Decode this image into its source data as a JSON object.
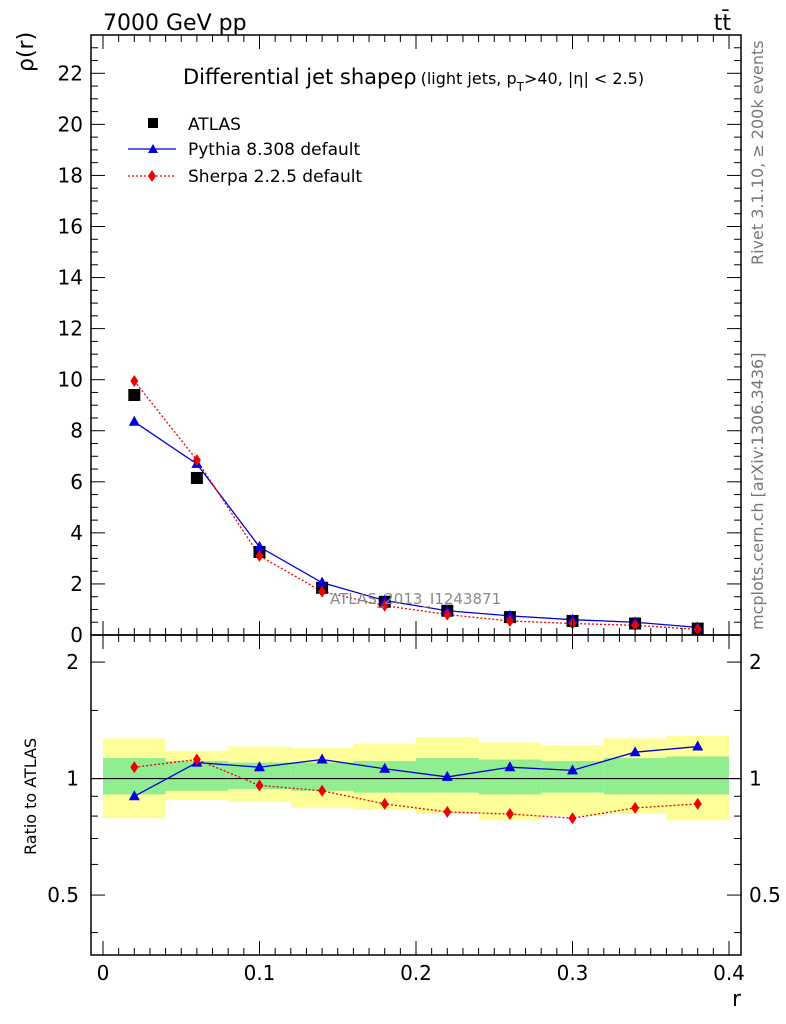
{
  "header": {
    "energy_label": "7000 GeV pp",
    "process_label": "tt̄"
  },
  "side_labels": {
    "rivet": "Rivet 3.1.10, ≥ 200k events",
    "mcplots": "mcplots.cern.ch [arXiv:1306.3436]"
  },
  "watermark": "ATLAS_2013_I1243871",
  "chart_data": [
    {
      "type": "line",
      "title_main": "Differential jet shapeρ",
      "title_sub_1": "(light jets, p",
      "title_sub_T": "T",
      "title_sub_2": ">40, |η| < 2.5)",
      "xlabel": "r",
      "ylabel": "ρ(r)",
      "xlim": [
        0,
        0.4
      ],
      "ylim": [
        0,
        23.5
      ],
      "x_ticks": [
        "0",
        "0.1",
        "0.2",
        "0.3",
        "0.4"
      ],
      "y_ticks": [
        "0",
        "2",
        "4",
        "6",
        "8",
        "10",
        "12",
        "14",
        "16",
        "18",
        "20",
        "22"
      ],
      "legend_position": "top-left",
      "x": [
        0.02,
        0.06,
        0.1,
        0.14,
        0.18,
        0.22,
        0.26,
        0.3,
        0.34,
        0.38
      ],
      "series": [
        {
          "name": "ATLAS",
          "color": "#000000",
          "marker": "square",
          "values": [
            9.4,
            6.15,
            3.25,
            1.85,
            1.3,
            0.95,
            0.7,
            0.55,
            0.45,
            0.25
          ]
        },
        {
          "name": "Pythia 8.308 default",
          "color": "#0000dd",
          "marker": "triangle",
          "values": [
            8.35,
            6.7,
            3.45,
            2.05,
            1.35,
            0.95,
            0.75,
            0.6,
            0.5,
            0.3
          ]
        },
        {
          "name": "Sherpa 2.2.5 default",
          "color": "#ee0000",
          "marker": "diamond",
          "values": [
            9.95,
            6.85,
            3.1,
            1.7,
            1.15,
            0.8,
            0.55,
            0.45,
            0.38,
            0.22
          ]
        }
      ]
    },
    {
      "type": "line",
      "ylabel": "Ratio to ATLAS",
      "xlabel": "r",
      "xlim": [
        0,
        0.4
      ],
      "ylim": [
        0.35,
        2.35
      ],
      "y_scale": "log",
      "y_ticks": [
        "0.5",
        "1",
        "2"
      ],
      "reference_line": 1,
      "bands": [
        {
          "name": "inner",
          "color": "#90ee90",
          "lower": [
            0.91,
            0.93,
            0.94,
            0.93,
            0.92,
            0.92,
            0.91,
            0.92,
            0.91,
            0.91
          ],
          "upper": [
            1.13,
            1.11,
            1.1,
            1.1,
            1.11,
            1.13,
            1.12,
            1.11,
            1.13,
            1.14
          ]
        },
        {
          "name": "outer",
          "color": "#ffff99",
          "lower": [
            0.79,
            0.88,
            0.87,
            0.84,
            0.83,
            0.81,
            0.78,
            0.8,
            0.81,
            0.78
          ],
          "upper": [
            1.27,
            1.18,
            1.21,
            1.2,
            1.23,
            1.28,
            1.24,
            1.22,
            1.27,
            1.29
          ]
        }
      ],
      "series": [
        {
          "name": "Pythia 8.308 default",
          "color": "#0000dd",
          "marker": "triangle",
          "values": [
            0.9,
            1.1,
            1.07,
            1.12,
            1.06,
            1.01,
            1.07,
            1.05,
            1.17,
            1.21
          ]
        },
        {
          "name": "Sherpa 2.2.5 default",
          "color": "#ee0000",
          "marker": "diamond",
          "values": [
            1.07,
            1.12,
            0.96,
            0.93,
            0.86,
            0.82,
            0.81,
            0.79,
            0.84,
            0.86
          ]
        }
      ]
    }
  ]
}
